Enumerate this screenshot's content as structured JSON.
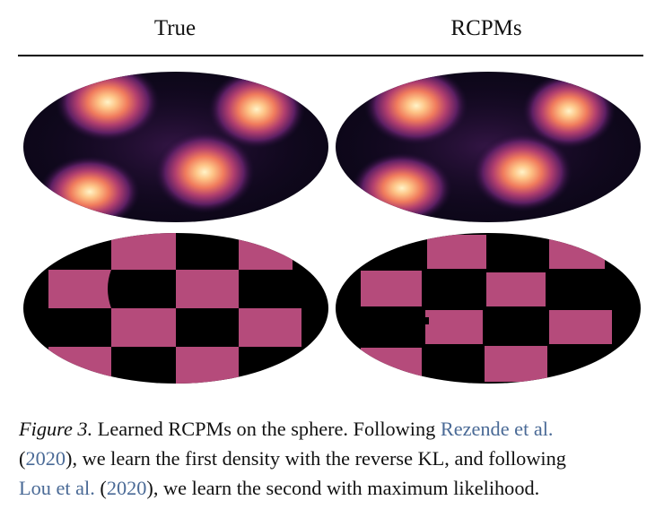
{
  "columns": {
    "true": "True",
    "rcpms": "RCPMs"
  },
  "caption": {
    "label": "Figure 3.",
    "text1": " Learned RCPMs on the sphere. Following ",
    "cite1": "Rezende et al.",
    "text2": "(",
    "cite1_year": "2020",
    "text3": "), we learn the first density with the reverse KL, and following",
    "cite2": "Lou et al.",
    "text4": " (",
    "cite2_year": "2020",
    "text5": "), we learn the second with maximum likelihood."
  },
  "colors": {
    "checker_pink": "#b54b7b",
    "background": "#000000",
    "cite_link": "#4a6a96"
  }
}
